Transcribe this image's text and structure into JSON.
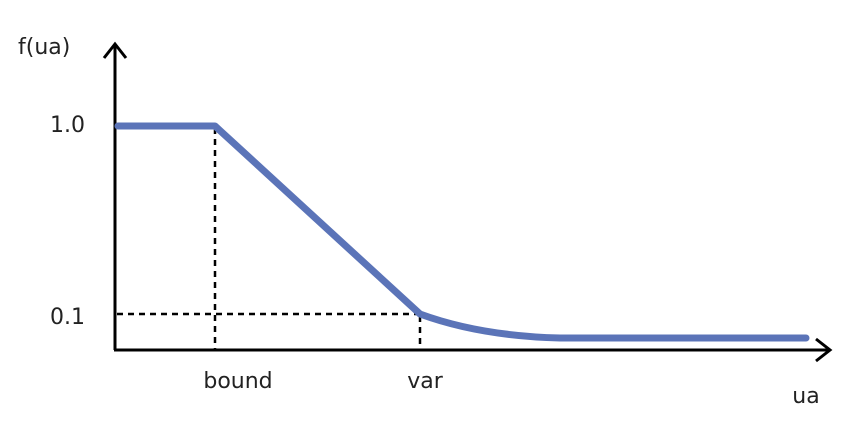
{
  "axes": {
    "y_label": "f(ua)",
    "x_label": "ua"
  },
  "y_ticks": [
    "1.0",
    "0.1"
  ],
  "x_ticks": [
    "bound",
    "var"
  ]
}
